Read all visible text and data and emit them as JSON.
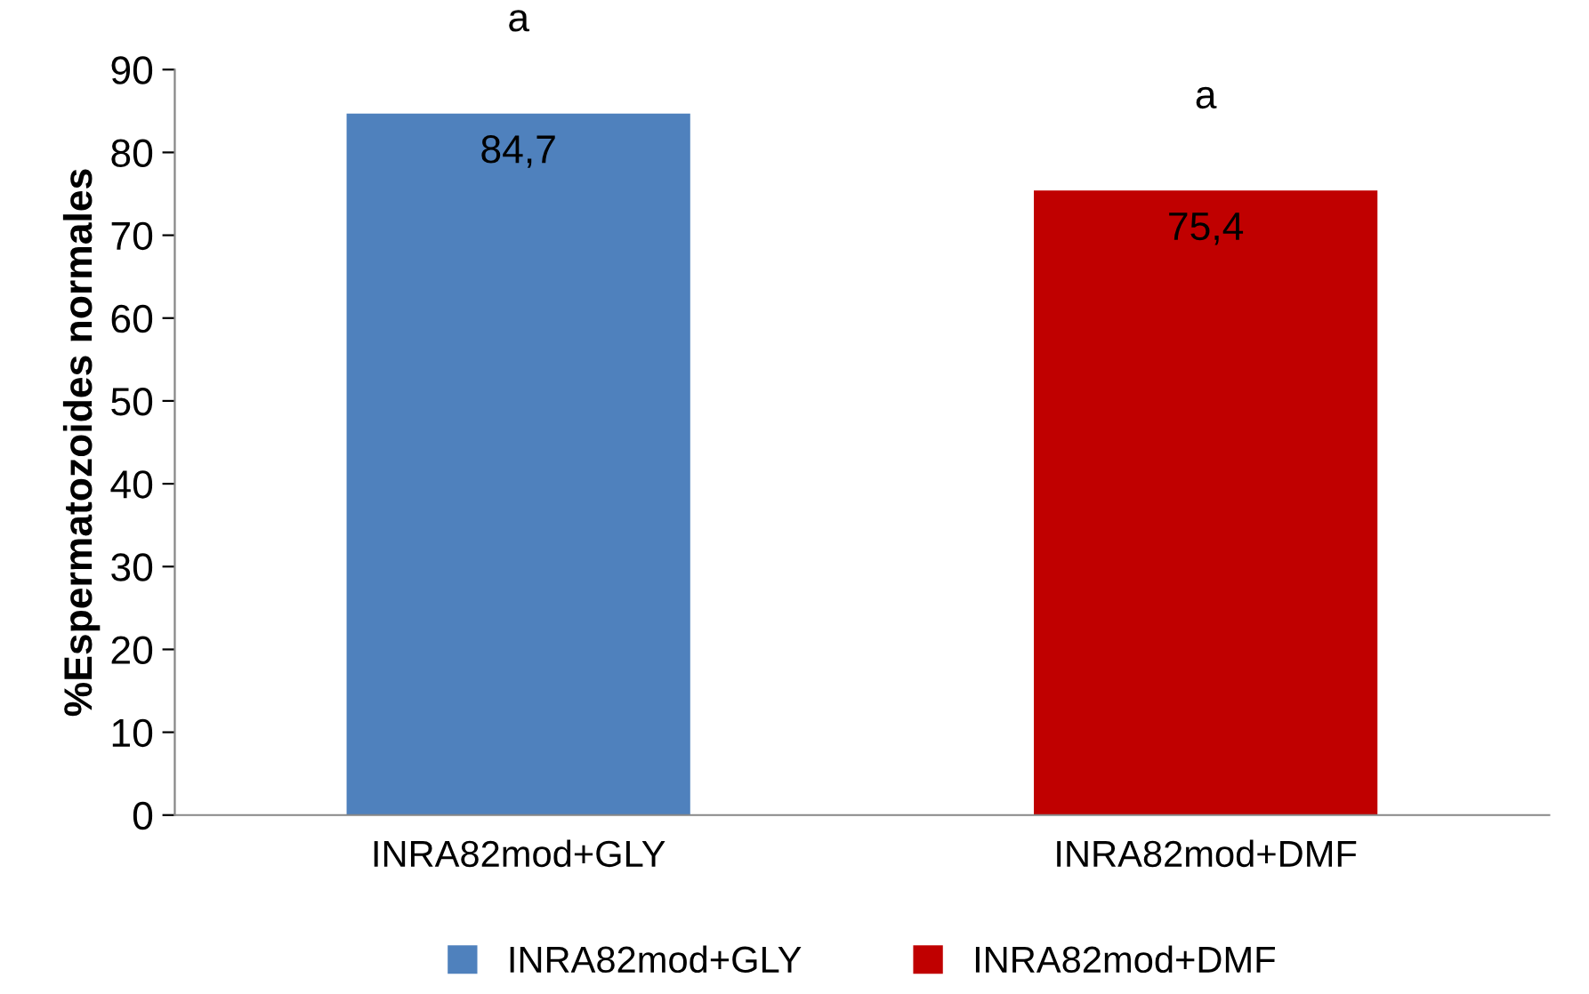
{
  "chart_data": {
    "type": "bar",
    "ylabel": "%Espermatozoides normales",
    "categories": [
      "INRA82mod+GLY",
      "INRA82mod+DMF"
    ],
    "series": [
      {
        "name": "INRA82mod+GLY",
        "color": "#4f81bd",
        "values": [
          84.7,
          null
        ],
        "value_labels": [
          "84,7",
          null
        ]
      },
      {
        "name": "INRA82mod+DMF",
        "color": "#c00000",
        "values": [
          null,
          75.4
        ],
        "value_labels": [
          null,
          "75,4"
        ]
      }
    ],
    "annotations": [
      "a",
      "a"
    ],
    "ylim": [
      0,
      90
    ],
    "yticks": [
      0,
      10,
      20,
      30,
      40,
      50,
      60,
      70,
      80,
      90
    ],
    "legend": "bottom",
    "grid": false
  }
}
